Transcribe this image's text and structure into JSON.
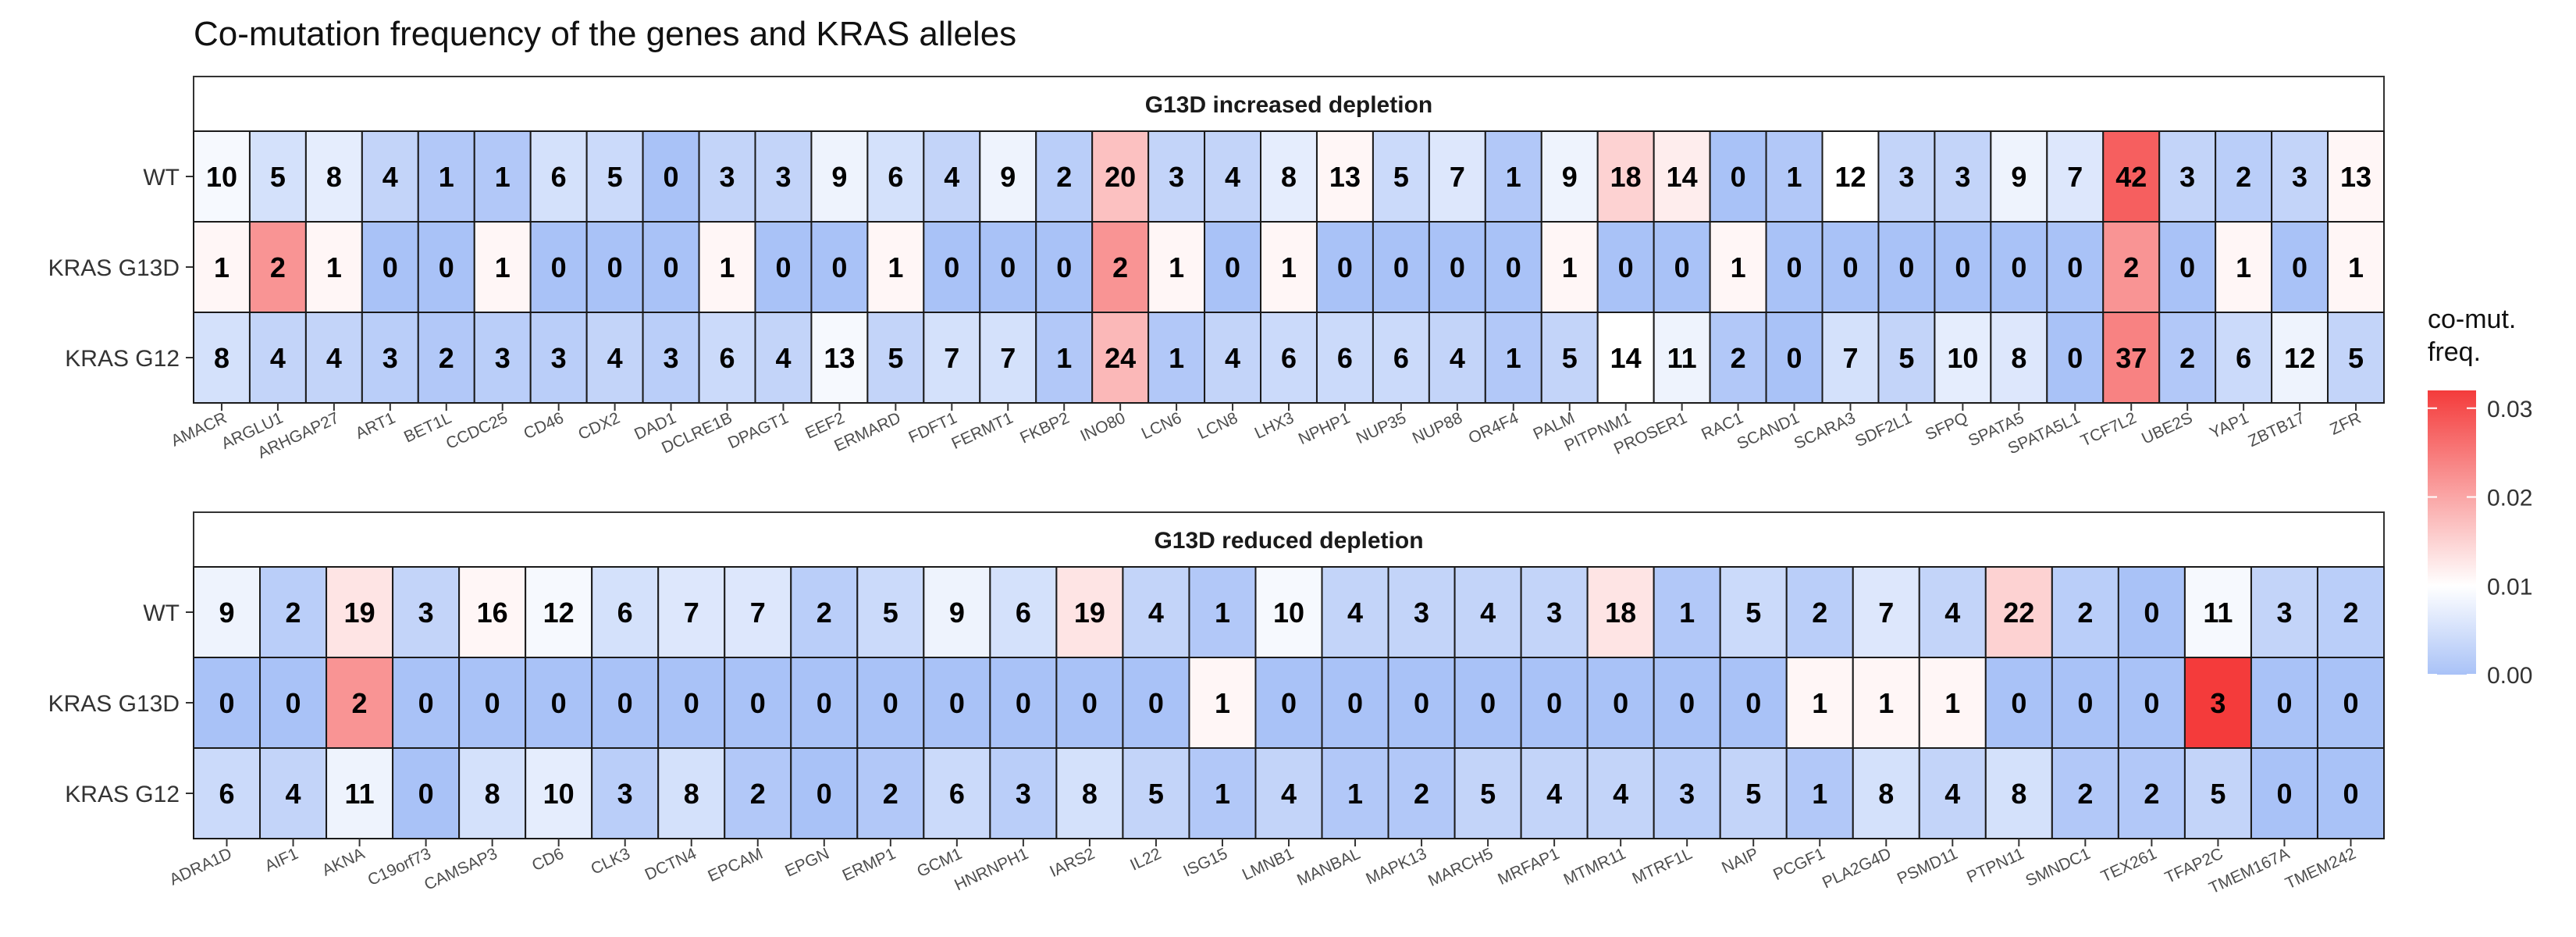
{
  "title": "Co-mutation frequency of the genes and KRAS alleles",
  "legend": {
    "title_line1": "co-mut.",
    "title_line2": "freq.",
    "ticks": [
      "0.00",
      "0.01",
      "0.02",
      "0.03"
    ],
    "tick_values": [
      0.0,
      0.01,
      0.02,
      0.03
    ],
    "range": [
      0.0,
      0.032
    ],
    "colors": {
      "low": "#a9c2f7",
      "mid": "#ffffff",
      "high": "#f43b3b"
    }
  },
  "chart_data": [
    {
      "type": "heatmap",
      "facet": "G13D increased depletion",
      "rows": [
        "WT",
        "KRAS G13D",
        "KRAS G12"
      ],
      "columns": [
        "AMACR",
        "ARGLU1",
        "ARHGAP27",
        "ART1",
        "BET1L",
        "CCDC25",
        "CD46",
        "CDX2",
        "DAD1",
        "DCLRE1B",
        "DPAGT1",
        "EEF2",
        "ERMARD",
        "FDFT1",
        "FERMT1",
        "FKBP2",
        "INO80",
        "LCN6",
        "LCN8",
        "LHX3",
        "NPHP1",
        "NUP35",
        "NUP88",
        "OR4F4",
        "PALM",
        "PITPNM1",
        "PROSER1",
        "RAC1",
        "SCAND1",
        "SCARA3",
        "SDF2L1",
        "SFPQ",
        "SPATA5",
        "SPATA5L1",
        "TCF7L2",
        "UBE2S",
        "YAP1",
        "ZBTB17",
        "ZFR"
      ],
      "counts": [
        [
          10,
          5,
          8,
          4,
          1,
          1,
          6,
          5,
          0,
          3,
          3,
          9,
          6,
          4,
          9,
          2,
          20,
          3,
          4,
          8,
          13,
          5,
          7,
          1,
          9,
          18,
          14,
          0,
          1,
          12,
          3,
          3,
          9,
          7,
          42,
          3,
          2,
          3,
          13
        ],
        [
          1,
          2,
          1,
          0,
          0,
          1,
          0,
          0,
          0,
          1,
          0,
          0,
          1,
          0,
          0,
          0,
          2,
          1,
          0,
          1,
          0,
          0,
          0,
          0,
          1,
          0,
          0,
          1,
          0,
          0,
          0,
          0,
          0,
          0,
          2,
          0,
          1,
          0,
          1
        ],
        [
          8,
          4,
          4,
          3,
          2,
          3,
          3,
          4,
          3,
          6,
          4,
          13,
          5,
          7,
          7,
          1,
          24,
          1,
          4,
          6,
          6,
          6,
          4,
          1,
          5,
          14,
          11,
          2,
          0,
          7,
          5,
          10,
          8,
          0,
          37,
          2,
          6,
          12,
          5
        ]
      ],
      "freq": [
        [
          0.009,
          0.005,
          0.007,
          0.003,
          0.001,
          0.001,
          0.005,
          0.004,
          0.0,
          0.003,
          0.003,
          0.008,
          0.005,
          0.003,
          0.008,
          0.002,
          0.017,
          0.003,
          0.003,
          0.007,
          0.011,
          0.004,
          0.006,
          0.001,
          0.008,
          0.015,
          0.012,
          0.0,
          0.001,
          0.01,
          0.003,
          0.003,
          0.008,
          0.006,
          0.028,
          0.003,
          0.002,
          0.003,
          0.011
        ],
        [
          0.011,
          0.022,
          0.011,
          0.0,
          0.0,
          0.011,
          0.0,
          0.0,
          0.0,
          0.011,
          0.0,
          0.0,
          0.011,
          0.0,
          0.0,
          0.0,
          0.022,
          0.011,
          0.0,
          0.011,
          0.0,
          0.0,
          0.0,
          0.0,
          0.011,
          0.0,
          0.0,
          0.011,
          0.0,
          0.0,
          0.0,
          0.0,
          0.0,
          0.0,
          0.022,
          0.0,
          0.011,
          0.0,
          0.011
        ],
        [
          0.005,
          0.003,
          0.003,
          0.002,
          0.001,
          0.002,
          0.002,
          0.003,
          0.002,
          0.004,
          0.003,
          0.009,
          0.003,
          0.005,
          0.005,
          0.001,
          0.018,
          0.001,
          0.003,
          0.004,
          0.004,
          0.004,
          0.003,
          0.001,
          0.003,
          0.01,
          0.008,
          0.001,
          0.0,
          0.005,
          0.003,
          0.007,
          0.006,
          0.0,
          0.024,
          0.001,
          0.004,
          0.008,
          0.003
        ]
      ]
    },
    {
      "type": "heatmap",
      "facet": "G13D reduced depletion",
      "rows": [
        "WT",
        "KRAS G13D",
        "KRAS G12"
      ],
      "columns": [
        "ADRA1D",
        "AIF1",
        "AKNA",
        "C19orf73",
        "CAMSAP3",
        "CD6",
        "CLK3",
        "DCTN4",
        "EPCAM",
        "EPGN",
        "ERMP1",
        "GCM1",
        "HNRNPH1",
        "IARS2",
        "IL22",
        "ISG15",
        "LMNB1",
        "MANBAL",
        "MAPK13",
        "MARCH5",
        "MRFAP1",
        "MTMR11",
        "MTRF1L",
        "NAIP",
        "PCGF1",
        "PLA2G4D",
        "PSMD11",
        "PTPN11",
        "SMNDC1",
        "TEX261",
        "TFAP2C",
        "TMEM167A",
        "TMEM242"
      ],
      "counts": [
        [
          9,
          2,
          19,
          3,
          16,
          12,
          6,
          7,
          7,
          2,
          5,
          9,
          6,
          19,
          4,
          1,
          10,
          4,
          3,
          4,
          3,
          18,
          1,
          5,
          2,
          7,
          4,
          22,
          2,
          0,
          11,
          3,
          2
        ],
        [
          0,
          0,
          2,
          0,
          0,
          0,
          0,
          0,
          0,
          0,
          0,
          0,
          0,
          0,
          0,
          1,
          0,
          0,
          0,
          0,
          0,
          0,
          0,
          0,
          1,
          1,
          1,
          0,
          0,
          0,
          3,
          0,
          0
        ],
        [
          6,
          4,
          11,
          0,
          8,
          10,
          3,
          8,
          2,
          0,
          2,
          6,
          3,
          8,
          5,
          1,
          4,
          1,
          2,
          5,
          4,
          4,
          3,
          5,
          1,
          8,
          4,
          8,
          2,
          2,
          5,
          0,
          0
        ]
      ],
      "freq": [
        [
          0.008,
          0.002,
          0.013,
          0.003,
          0.011,
          0.009,
          0.005,
          0.006,
          0.006,
          0.002,
          0.004,
          0.008,
          0.005,
          0.013,
          0.003,
          0.001,
          0.009,
          0.003,
          0.003,
          0.003,
          0.003,
          0.013,
          0.001,
          0.004,
          0.002,
          0.006,
          0.003,
          0.015,
          0.002,
          0.0,
          0.009,
          0.003,
          0.002
        ],
        [
          0.0,
          0.0,
          0.022,
          0.0,
          0.0,
          0.0,
          0.0,
          0.0,
          0.0,
          0.0,
          0.0,
          0.0,
          0.0,
          0.0,
          0.0,
          0.011,
          0.0,
          0.0,
          0.0,
          0.0,
          0.0,
          0.0,
          0.0,
          0.0,
          0.011,
          0.011,
          0.011,
          0.0,
          0.0,
          0.0,
          0.032,
          0.0,
          0.0
        ],
        [
          0.004,
          0.003,
          0.008,
          0.0,
          0.005,
          0.007,
          0.002,
          0.005,
          0.001,
          0.0,
          0.001,
          0.004,
          0.002,
          0.005,
          0.003,
          0.001,
          0.003,
          0.001,
          0.001,
          0.003,
          0.003,
          0.003,
          0.002,
          0.003,
          0.001,
          0.005,
          0.003,
          0.005,
          0.001,
          0.001,
          0.003,
          0.0,
          0.0
        ]
      ]
    }
  ]
}
